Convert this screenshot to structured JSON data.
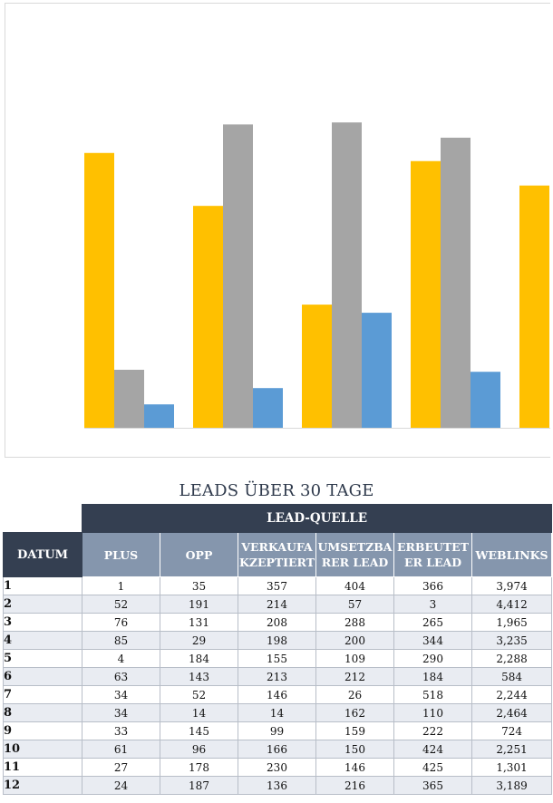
{
  "chart_data": {
    "type": "bar",
    "series": [
      {
        "color": "#ffc000",
        "values": [
          270,
          218,
          121,
          262,
          238
        ]
      },
      {
        "color": "#a5a5a5",
        "values": [
          57,
          298,
          300,
          285
        ]
      },
      {
        "color": "#5b9bd5",
        "values": [
          23,
          39,
          113,
          55
        ]
      }
    ],
    "ylim": [
      0,
      390
    ],
    "grid": false,
    "legend": "none"
  },
  "report": {
    "title": "LEADS ÜBER 30 TAGE",
    "group_header": "LEAD-QUELLE",
    "datum_header": "DATUM",
    "columns": [
      "PLUS",
      "OPP",
      "VERKAUFAKZEPTIERT",
      "UMSETZBARER LEAD",
      "ERBEUTETER LEAD",
      "WEBLINKS"
    ],
    "rows": [
      {
        "day": "1",
        "values": [
          "1",
          "35",
          "357",
          "404",
          "366",
          "3,974"
        ]
      },
      {
        "day": "2",
        "values": [
          "52",
          "191",
          "214",
          "57",
          "3",
          "4,412"
        ]
      },
      {
        "day": "3",
        "values": [
          "76",
          "131",
          "208",
          "288",
          "265",
          "1,965"
        ]
      },
      {
        "day": "4",
        "values": [
          "85",
          "29",
          "198",
          "200",
          "344",
          "3,235"
        ]
      },
      {
        "day": "5",
        "values": [
          "4",
          "184",
          "155",
          "109",
          "290",
          "2,288"
        ]
      },
      {
        "day": "6",
        "values": [
          "63",
          "143",
          "213",
          "212",
          "184",
          "584"
        ]
      },
      {
        "day": "7",
        "values": [
          "34",
          "52",
          "146",
          "26",
          "518",
          "2,244"
        ]
      },
      {
        "day": "8",
        "values": [
          "34",
          "14",
          "14",
          "162",
          "110",
          "2,464"
        ]
      },
      {
        "day": "9",
        "values": [
          "33",
          "145",
          "99",
          "159",
          "222",
          "724"
        ]
      },
      {
        "day": "10",
        "values": [
          "61",
          "96",
          "166",
          "150",
          "424",
          "2,251"
        ]
      },
      {
        "day": "11",
        "values": [
          "27",
          "178",
          "230",
          "146",
          "425",
          "1,301"
        ]
      },
      {
        "day": "12",
        "values": [
          "24",
          "187",
          "136",
          "216",
          "365",
          "3,189"
        ]
      }
    ]
  }
}
